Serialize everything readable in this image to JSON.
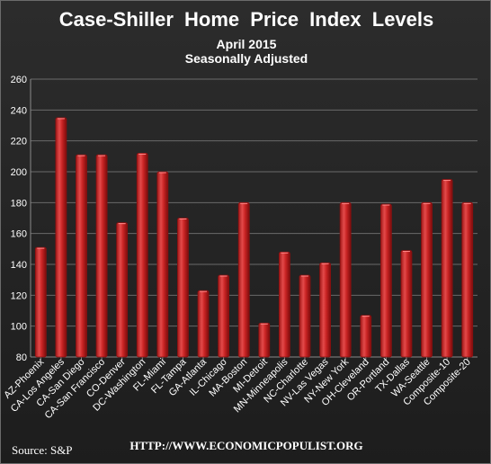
{
  "header": {
    "title": "Case-Shiller  Home Price Index Levels",
    "subtitle": "April  2015",
    "subtitle2": "Seasonally Adjusted"
  },
  "footer": {
    "source": "Source:  S&P",
    "url": "HTTP://WWW.ECONOMICPOPULIST.ORG"
  },
  "colors": {
    "bar": "#d42b2b",
    "bar_dark": "#8a1010",
    "grid": "#6a6a6a",
    "text": "#ffffff"
  },
  "chart_data": {
    "type": "bar",
    "title": "Case-Shiller  Home Price Index Levels",
    "subtitle": "April  2015 Seasonally Adjusted",
    "xlabel": "",
    "ylabel": "",
    "ylim": [
      80,
      260
    ],
    "yticks": [
      80,
      100,
      120,
      140,
      160,
      180,
      200,
      220,
      240,
      260
    ],
    "grid": true,
    "categories": [
      "AZ-Phoenix",
      "CA-Los Angeles",
      "CA-San Diego",
      "CA-San Francisco",
      "CO-Denver",
      "DC-Washington",
      "FL-Miami",
      "FL-Tampa",
      "GA-Atlanta",
      "IL-Chicago",
      "MA-Boston",
      "MI-Detroit",
      "MN-Minneapolis",
      "NC-Charlotte",
      "NV-Las Vegas",
      "NY-New York",
      "OH-Cleveland",
      "OR-Portland",
      "TX-Dallas",
      "WA-Seattle",
      "Composite-10",
      "Composite-20"
    ],
    "values": [
      151,
      235,
      211,
      211,
      167,
      212,
      200,
      170,
      123,
      133,
      180,
      102,
      148,
      133,
      141,
      180,
      107,
      179,
      149,
      180,
      195,
      180
    ]
  }
}
